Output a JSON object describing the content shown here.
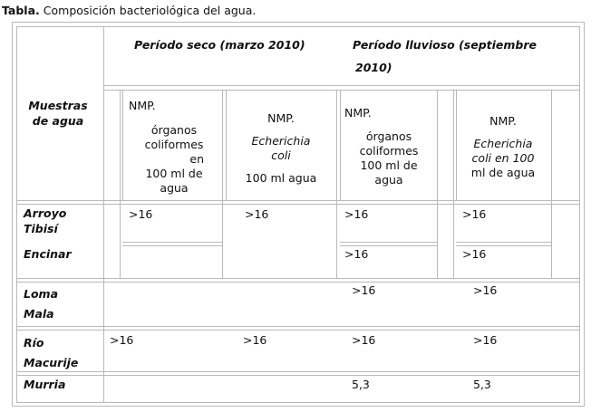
{
  "caption": {
    "label": "Tabla.",
    "text": "Composición bacteriológica del agua."
  },
  "header": {
    "muestras": [
      "Muestras",
      "de agua"
    ],
    "periodo_seco": "Período  seco (marzo 2010)",
    "periodo_lluvioso_1": "Período  lluvioso  (septiembre",
    "periodo_lluvioso_2": "2010)"
  },
  "subheaders": {
    "seco_coliformes": [
      "NMP.",
      "órganos",
      "coliformes",
      "en",
      "100 ml de",
      "agua"
    ],
    "seco_ecoli_1": "NMP.",
    "seco_ecoli_2": "Echerichia",
    "seco_ecoli_3": "coli",
    "seco_ecoli_4": "100 ml  agua",
    "lluv_coliformes": [
      "NMP.",
      "órganos",
      "coliformes",
      "100 ml de",
      "agua"
    ],
    "lluv_ecoli_1": "NMP.",
    "lluv_ecoli_2": "Echerichia",
    "lluv_ecoli_3": "coli en 100",
    "lluv_ecoli_4": "ml de agua"
  },
  "rows": {
    "arroyo": {
      "name_1": "Arroyo",
      "name_2": "Tibisí",
      "seco_coliformes": ">16",
      "seco_ecoli": ">16",
      "lluv_coliformes": ">16",
      "lluv_ecoli": ">16"
    },
    "encinar": {
      "name": "Encinar",
      "lluv_coliformes": ">16",
      "lluv_ecoli": ">16"
    },
    "loma": {
      "name_1": "Loma",
      "name_2": "Mala",
      "lluv_coliformes": ">16",
      "lluv_ecoli": ">16"
    },
    "rio": {
      "name_1": "Río",
      "name_2": "Macurije",
      "seco_coliformes": ">16",
      "seco_ecoli": ">16",
      "lluv_coliformes": ">16",
      "lluv_ecoli": ">16"
    },
    "murria": {
      "name": "Murria",
      "lluv_coliformes": "5,3",
      "lluv_ecoli": "5,3"
    }
  }
}
